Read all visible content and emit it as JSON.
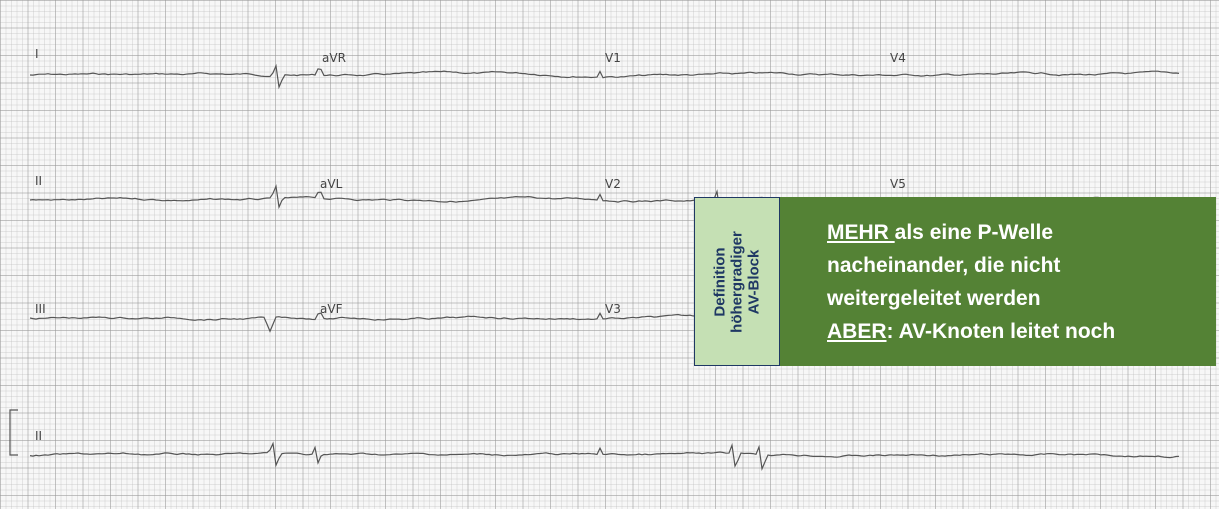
{
  "leads": [
    {
      "label": "I"
    },
    {
      "label": "aVR"
    },
    {
      "label": "V1"
    },
    {
      "label": "V4"
    },
    {
      "label": "II"
    },
    {
      "label": "aVL"
    },
    {
      "label": "V2"
    },
    {
      "label": "V5"
    },
    {
      "label": "III"
    },
    {
      "label": "aVF"
    },
    {
      "label": "V3"
    },
    {
      "label": "II"
    }
  ],
  "box": {
    "side_label": [
      "Definition",
      "höhergradiger",
      "AV-Block"
    ],
    "lines": [
      [
        {
          "text": "MEHR ",
          "underline": true
        },
        {
          "text": "als eine P-Welle",
          "underline": false
        }
      ],
      [
        {
          "text": "nacheinander, die nicht",
          "underline": false
        }
      ],
      [
        {
          "text": "weitergeleitet werden",
          "underline": false
        }
      ],
      [
        {
          "text": "ABER",
          "underline": true
        },
        {
          "text": ": AV-Knoten leitet noch",
          "underline": false
        }
      ]
    ]
  }
}
